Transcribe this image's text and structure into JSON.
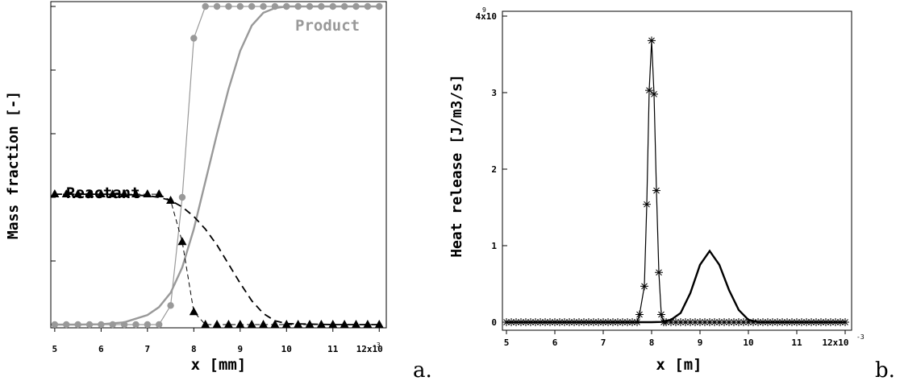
{
  "chart_data": [
    {
      "panel_label": "a.",
      "type": "line",
      "xlabel": "x [mm]",
      "ylabel": "Mass fraction [-]",
      "xlim": [
        4.95,
        12.1
      ],
      "ylim": [
        0,
        1
      ],
      "x_ticks": [
        5,
        6,
        7,
        8,
        9,
        10,
        11,
        12
      ],
      "x_tick_labels": [
        "5",
        "6",
        "7",
        "8",
        "9",
        "10",
        "11",
        "12x10"
      ],
      "x_exponent": "-3",
      "annotations": [
        {
          "text": "Product",
          "x": 10.9,
          "y": 0.955,
          "color": "#999999"
        },
        {
          "text": "Reactant",
          "x": 7.2,
          "y": 0.475,
          "color": "#000000"
        }
      ],
      "series": [
        {
          "style": "gray-thin-circles",
          "color": "#999999",
          "x": [
            5.0,
            5.25,
            5.5,
            5.75,
            6.0,
            6.25,
            6.5,
            6.75,
            7.0,
            7.25,
            7.5,
            7.75,
            8.0,
            8.25,
            8.5,
            8.75,
            9.0,
            9.25,
            9.5,
            9.75,
            10.0,
            10.25,
            10.5,
            10.75,
            11.0,
            11.25,
            11.5,
            11.75,
            12.0
          ],
          "y": [
            0,
            0,
            0,
            0,
            0,
            0,
            0,
            0,
            0,
            0,
            0.06,
            0.4,
            0.9,
            1,
            1,
            1,
            1,
            1,
            1,
            1,
            1,
            1,
            1,
            1,
            1,
            1,
            1,
            1,
            1
          ]
        },
        {
          "style": "gray-thick",
          "color": "#999999",
          "x": [
            5.0,
            5.5,
            6.0,
            6.5,
            7.0,
            7.25,
            7.5,
            7.75,
            8.0,
            8.25,
            8.5,
            8.75,
            9.0,
            9.25,
            9.5,
            9.75,
            10.0,
            10.5,
            11.0,
            12.0
          ],
          "y": [
            0,
            0,
            0.001,
            0.007,
            0.03,
            0.055,
            0.1,
            0.18,
            0.3,
            0.45,
            0.6,
            0.74,
            0.86,
            0.94,
            0.98,
            0.995,
            1,
            1,
            1,
            1
          ]
        },
        {
          "style": "black-dashed",
          "color": "#000000",
          "x": [
            5.0,
            5.5,
            6.0,
            6.5,
            7.0,
            7.25,
            7.5,
            7.75,
            8.0,
            8.25,
            8.5,
            8.75,
            9.0,
            9.25,
            9.5,
            9.75,
            10.0,
            11.0,
            12.0
          ],
          "y": [
            0.41,
            0.41,
            0.41,
            0.409,
            0.405,
            0.4,
            0.39,
            0.37,
            0.34,
            0.3,
            0.25,
            0.19,
            0.13,
            0.075,
            0.035,
            0.012,
            0.003,
            0,
            0
          ]
        },
        {
          "style": "black-thin-triangles",
          "color": "#000000",
          "x": [
            5.0,
            5.25,
            5.5,
            5.75,
            6.0,
            6.25,
            6.5,
            6.75,
            7.0,
            7.25,
            7.5,
            7.75,
            8.0,
            8.25,
            8.5,
            8.75,
            9.0,
            9.25,
            9.5,
            9.75,
            10.0,
            10.25,
            10.5,
            10.75,
            11.0,
            11.25,
            11.5,
            11.75,
            12.0
          ],
          "y": [
            0.41,
            0.41,
            0.41,
            0.41,
            0.41,
            0.41,
            0.41,
            0.41,
            0.41,
            0.41,
            0.39,
            0.26,
            0.04,
            0,
            0,
            0,
            0,
            0,
            0,
            0,
            0,
            0,
            0,
            0,
            0,
            0,
            0,
            0,
            0
          ]
        }
      ]
    },
    {
      "panel_label": "b.",
      "type": "line",
      "xlabel": "x [m]",
      "ylabel": "Heat release [J/m3/s]",
      "xlim": [
        4.95,
        12.1
      ],
      "ylim": [
        -0.05,
        4.0
      ],
      "x_ticks": [
        5,
        6,
        7,
        8,
        9,
        10,
        11,
        12
      ],
      "x_tick_labels": [
        "5",
        "6",
        "7",
        "8",
        "9",
        "10",
        "11",
        "12x10"
      ],
      "x_exponent": "-3",
      "y_ticks": [
        0,
        1,
        2,
        3,
        4
      ],
      "y_tick_labels": [
        "0",
        "1",
        "2",
        "3",
        "4x10"
      ],
      "y_exponent": "9",
      "series": [
        {
          "style": "black-thin-stars",
          "color": "#000000",
          "x": [
            5.0,
            5.1,
            5.2,
            5.3,
            5.4,
            5.5,
            5.6,
            5.7,
            5.8,
            5.9,
            6.0,
            6.1,
            6.2,
            6.3,
            6.4,
            6.5,
            6.6,
            6.7,
            6.8,
            6.9,
            7.0,
            7.1,
            7.2,
            7.3,
            7.4,
            7.5,
            7.6,
            7.7,
            7.75,
            7.85,
            7.9,
            7.95,
            8.0,
            8.05,
            8.1,
            8.15,
            8.2,
            8.25,
            8.3,
            8.4,
            8.5,
            8.6,
            8.7,
            8.8,
            8.9,
            9.0,
            9.1,
            9.2,
            9.3,
            9.4,
            9.5,
            9.6,
            9.7,
            9.8,
            9.9,
            10.0,
            10.1,
            10.2,
            10.3,
            10.4,
            10.5,
            10.6,
            10.7,
            10.8,
            10.9,
            11.0,
            11.1,
            11.2,
            11.3,
            11.4,
            11.5,
            11.6,
            11.7,
            11.8,
            11.9,
            12.0
          ],
          "y": [
            0,
            0,
            0,
            0,
            0,
            0,
            0,
            0,
            0,
            0,
            0,
            0,
            0,
            0,
            0,
            0,
            0,
            0,
            0,
            0,
            0,
            0,
            0,
            0,
            0,
            0,
            0,
            0,
            0.1,
            0.47,
            1.54,
            3.03,
            3.68,
            2.98,
            1.72,
            0.65,
            0.1,
            0,
            0,
            0,
            0,
            0,
            0,
            0,
            0,
            0,
            0,
            0,
            0,
            0,
            0,
            0,
            0,
            0,
            0,
            0,
            0,
            0,
            0,
            0,
            0,
            0,
            0,
            0,
            0,
            0,
            0,
            0,
            0,
            0,
            0,
            0,
            0,
            0,
            0,
            0
          ]
        },
        {
          "style": "black-thick",
          "color": "#000000",
          "x": [
            5.0,
            8.0,
            8.2,
            8.4,
            8.6,
            8.8,
            9.0,
            9.2,
            9.4,
            9.6,
            9.8,
            10.0,
            10.2,
            12.0
          ],
          "y": [
            0,
            0,
            0.003,
            0.03,
            0.12,
            0.38,
            0.75,
            0.93,
            0.75,
            0.42,
            0.16,
            0.03,
            0,
            0
          ]
        }
      ]
    }
  ]
}
